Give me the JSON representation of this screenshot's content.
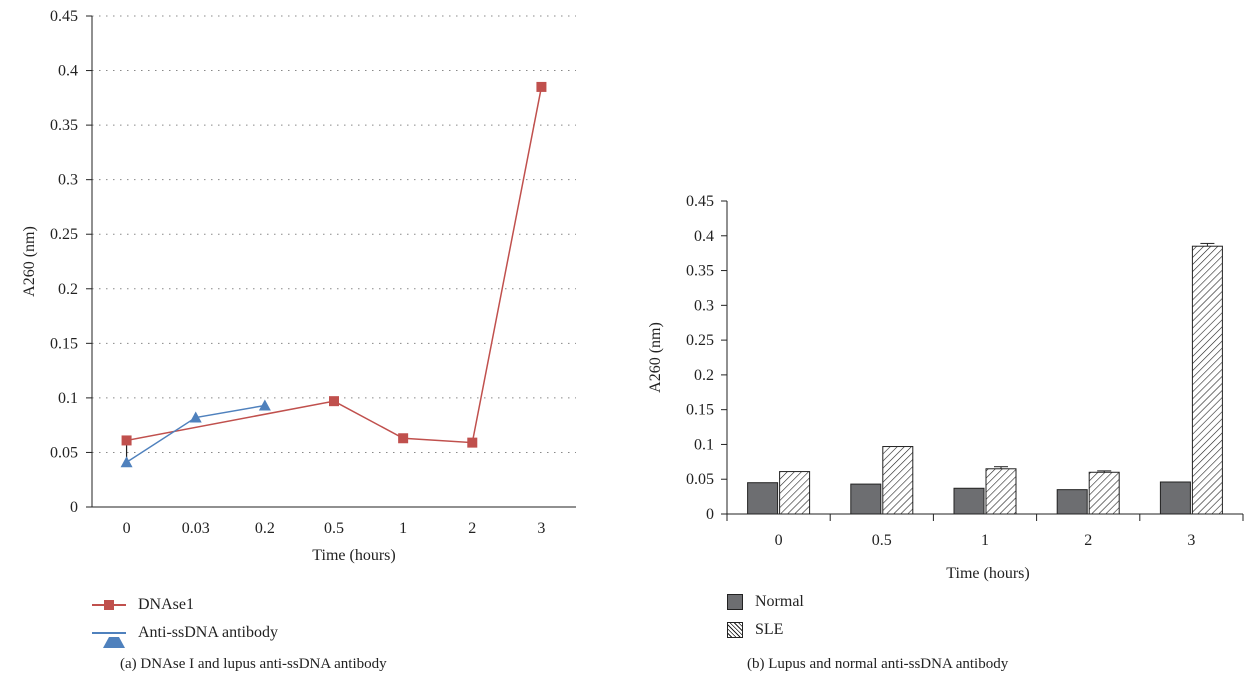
{
  "chart_data": [
    {
      "type": "line",
      "caption": "(a) DNAse I and lupus anti-ssDNA antibody",
      "xlabel": "Time (hours)",
      "ylabel": "A260 (nm)",
      "categories": [
        "0",
        "0.03",
        "0.2",
        "0.5",
        "1",
        "2",
        "3"
      ],
      "ylim": [
        0,
        0.45
      ],
      "yticks": [
        "0",
        "0.05",
        "0.1",
        "0.15",
        "0.2",
        "0.25",
        "0.3",
        "0.35",
        "0.4",
        "0.45"
      ],
      "grid": "dotted horizontal",
      "legend_position": "bottom-left",
      "series": [
        {
          "name": "DNAse1",
          "marker": "square",
          "color": "#c0504d",
          "points": [
            {
              "x": "0",
              "y": 0.061
            },
            {
              "x": "0.5",
              "y": 0.097
            },
            {
              "x": "1",
              "y": 0.063
            },
            {
              "x": "2",
              "y": 0.059
            },
            {
              "x": "3",
              "y": 0.385
            }
          ]
        },
        {
          "name": "Anti-ssDNA antibody",
          "marker": "triangle",
          "color": "#4f81bd",
          "points": [
            {
              "x": "0",
              "y": 0.041
            },
            {
              "x": "0.03",
              "y": 0.082
            },
            {
              "x": "0.2",
              "y": 0.093
            }
          ]
        }
      ]
    },
    {
      "type": "bar",
      "caption": "(b) Lupus and normal anti-ssDNA antibody",
      "xlabel": "Time (hours)",
      "ylabel": "A260 (nm)",
      "categories": [
        "0",
        "0.5",
        "1",
        "2",
        "3"
      ],
      "ylim": [
        0,
        0.45
      ],
      "yticks": [
        "0",
        "0.05",
        "0.1",
        "0.15",
        "0.2",
        "0.25",
        "0.3",
        "0.35",
        "0.4",
        "0.45"
      ],
      "grid": "off",
      "legend_position": "bottom-left",
      "series": [
        {
          "name": "Normal",
          "fill": "solid",
          "color": "#6d6e71",
          "values": [
            0.045,
            0.043,
            0.037,
            0.035,
            0.046
          ]
        },
        {
          "name": "SLE",
          "fill": "hatched",
          "color": "#222222",
          "values": [
            0.061,
            0.097,
            0.065,
            0.06,
            0.385
          ],
          "errors": [
            0,
            0,
            0.003,
            0.002,
            0.004
          ]
        }
      ]
    }
  ]
}
